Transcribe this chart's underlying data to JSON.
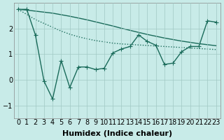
{
  "x": [
    0,
    1,
    2,
    3,
    4,
    5,
    6,
    7,
    8,
    9,
    10,
    11,
    12,
    13,
    14,
    15,
    16,
    17,
    18,
    19,
    20,
    21,
    22,
    23
  ],
  "main_line": [
    2.75,
    2.75,
    1.75,
    -0.05,
    -0.75,
    0.75,
    -0.3,
    0.5,
    0.5,
    0.4,
    0.45,
    1.05,
    1.2,
    1.3,
    1.75,
    1.5,
    1.35,
    0.6,
    0.65,
    1.1,
    1.3,
    1.3,
    2.3,
    2.25
  ],
  "trend_down_x": [
    0,
    1,
    2,
    3,
    4,
    5,
    6,
    7,
    8,
    9,
    10,
    11,
    12,
    13,
    14,
    15,
    16,
    17,
    18,
    19,
    20,
    21,
    22,
    23
  ],
  "trend_down_y": [
    2.75,
    2.55,
    2.35,
    2.2,
    2.05,
    1.9,
    1.78,
    1.68,
    1.6,
    1.53,
    1.48,
    1.43,
    1.4,
    1.38,
    1.36,
    1.34,
    1.32,
    1.3,
    1.28,
    1.26,
    1.24,
    1.22,
    1.2,
    1.18
  ],
  "trend_up_x": [
    0,
    1,
    2,
    3,
    4,
    5,
    6,
    7,
    8,
    9,
    10,
    11,
    12,
    13,
    14,
    15,
    16,
    17,
    18,
    19,
    20,
    21,
    22,
    23
  ],
  "trend_up_y": [
    2.75,
    2.72,
    2.68,
    2.64,
    2.6,
    2.54,
    2.48,
    2.41,
    2.34,
    2.26,
    2.18,
    2.1,
    2.01,
    1.93,
    1.85,
    1.77,
    1.7,
    1.63,
    1.57,
    1.51,
    1.46,
    1.41,
    1.37,
    1.33
  ],
  "line_color": "#1a6b5a",
  "bg_color": "#c8ebe8",
  "grid_color": "#a0c8c4",
  "xlabel": "Humidex (Indice chaleur)",
  "ylim": [
    -1.5,
    3.0
  ],
  "xlim": [
    -0.5,
    23.5
  ],
  "yticks": [
    -1,
    0,
    1,
    2
  ],
  "font_size": 7,
  "marker": "+",
  "marker_size": 5,
  "line_width": 1.0
}
